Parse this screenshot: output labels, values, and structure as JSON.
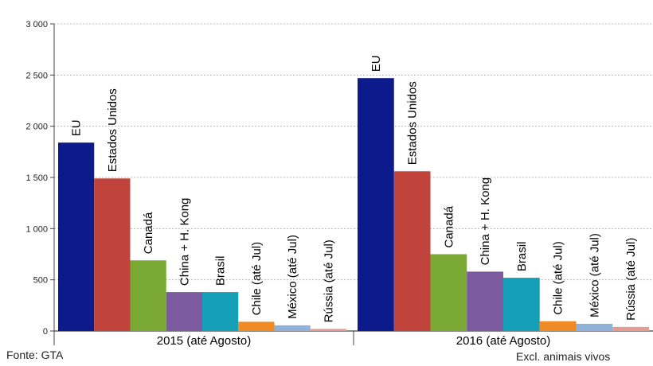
{
  "chart_data": {
    "type": "bar",
    "title": "",
    "xlabel": "",
    "ylabel": "",
    "ylim": [
      0,
      3000
    ],
    "yticks": [
      0,
      500,
      1000,
      1500,
      2000,
      2500,
      3000
    ],
    "ytick_labels": [
      "0",
      "500",
      "1 000",
      "1 500",
      "2 000",
      "2 500",
      "3 000"
    ],
    "grid": true,
    "groups": [
      "2015 (até Agosto)",
      "2016 (até Agosto)"
    ],
    "series": [
      {
        "name": "EU",
        "color": "#0c1a8c",
        "values": [
          1840,
          2470
        ]
      },
      {
        "name": "Estados Unidos",
        "color": "#c0443c",
        "values": [
          1490,
          1560
        ]
      },
      {
        "name": "Canadá",
        "color": "#7aaa34",
        "values": [
          690,
          750
        ]
      },
      {
        "name": "China + H. Kong",
        "color": "#7b5aa0",
        "values": [
          380,
          580
        ]
      },
      {
        "name": "Brasil",
        "color": "#159fb6",
        "values": [
          380,
          520
        ]
      },
      {
        "name": "Chile (até Jul)",
        "color": "#f08a24",
        "values": [
          90,
          95
        ]
      },
      {
        "name": "México (até Jul)",
        "color": "#8fb1da",
        "values": [
          55,
          70
        ]
      },
      {
        "name": "Rússia (até Jul)",
        "color": "#e59a92",
        "values": [
          20,
          40
        ]
      }
    ]
  },
  "footer": {
    "source": "Fonte: GTA",
    "note": "Excl. animais vivos"
  }
}
